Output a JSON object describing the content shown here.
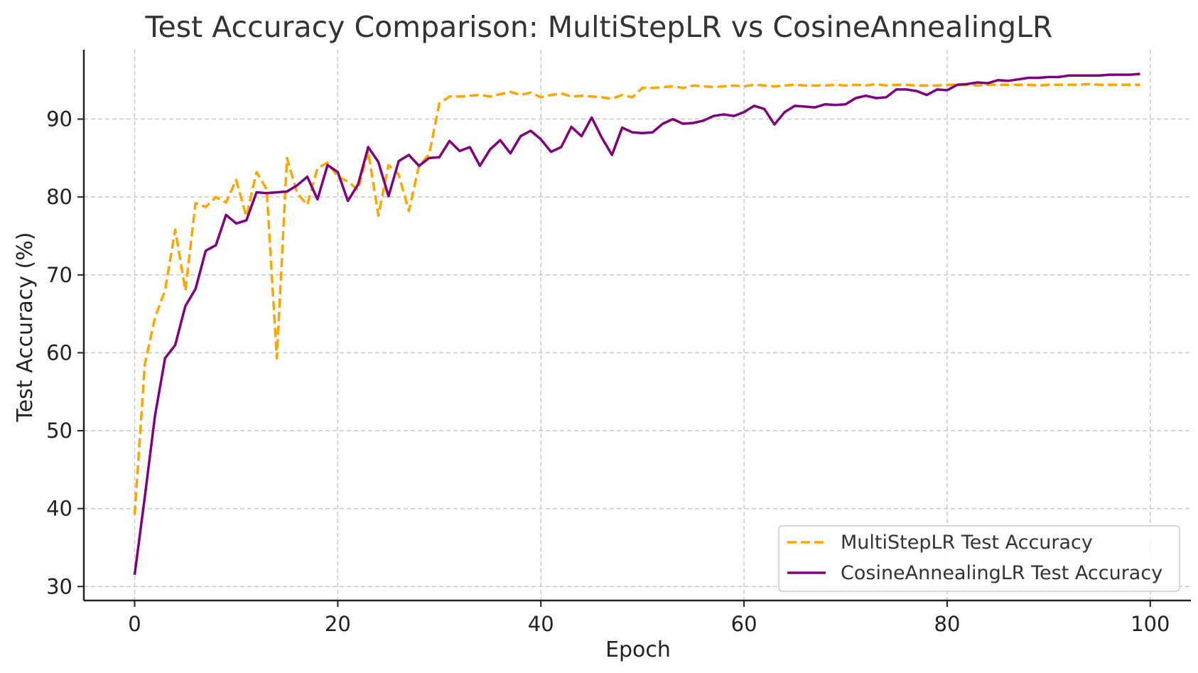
{
  "chart_data": {
    "type": "line",
    "title": "Test Accuracy Comparison: MultiStepLR vs CosineAnnealingLR",
    "xlabel": "Epoch",
    "ylabel": "Test Accuracy (%)",
    "xlim": [
      -5,
      104
    ],
    "ylim": [
      28.2,
      98.9
    ],
    "xticks": [
      0,
      20,
      40,
      60,
      80,
      100
    ],
    "yticks": [
      30,
      40,
      50,
      60,
      70,
      80,
      90
    ],
    "grid": true,
    "legend_position": "bottom-right",
    "series": [
      {
        "name": "MultiStepLR Test Accuracy",
        "color": "#ffa500",
        "style": "dashed",
        "x": [
          0,
          1,
          2,
          3,
          4,
          5,
          6,
          7,
          8,
          9,
          10,
          11,
          12,
          13,
          14,
          15,
          16,
          17,
          18,
          19,
          20,
          21,
          22,
          23,
          24,
          25,
          26,
          27,
          28,
          29,
          30,
          31,
          32,
          33,
          34,
          35,
          36,
          37,
          38,
          39,
          40,
          41,
          42,
          43,
          44,
          45,
          46,
          47,
          48,
          49,
          50,
          51,
          52,
          53,
          54,
          55,
          56,
          57,
          58,
          59,
          60,
          61,
          62,
          63,
          64,
          65,
          66,
          67,
          68,
          69,
          70,
          71,
          72,
          73,
          74,
          75,
          76,
          77,
          78,
          79,
          80,
          81,
          82,
          83,
          84,
          85,
          86,
          87,
          88,
          89,
          90,
          91,
          92,
          93,
          94,
          95,
          96,
          97,
          98,
          99
        ],
        "values": [
          39.2,
          58.5,
          64.5,
          68.0,
          75.8,
          68.0,
          79.2,
          78.7,
          80.0,
          79.3,
          82.2,
          77.5,
          83.2,
          81.0,
          59.3,
          85.0,
          80.5,
          79.0,
          83.7,
          84.4,
          82.6,
          82.0,
          80.9,
          85.9,
          77.6,
          84.1,
          82.9,
          78.2,
          84.0,
          85.5,
          92.0,
          92.9,
          92.9,
          93.0,
          93.1,
          92.9,
          93.2,
          93.5,
          93.1,
          93.4,
          92.8,
          93.1,
          93.3,
          92.9,
          93.0,
          92.9,
          92.8,
          92.6,
          93.1,
          92.8,
          94.0,
          94.0,
          94.1,
          94.2,
          94.0,
          94.3,
          94.2,
          94.1,
          94.2,
          94.3,
          94.2,
          94.4,
          94.3,
          94.2,
          94.3,
          94.4,
          94.3,
          94.3,
          94.3,
          94.4,
          94.3,
          94.4,
          94.3,
          94.5,
          94.3,
          94.4,
          94.4,
          94.3,
          94.3,
          94.3,
          94.4,
          94.4,
          94.4,
          94.3,
          94.4,
          94.4,
          94.4,
          94.4,
          94.4,
          94.3,
          94.4,
          94.4,
          94.4,
          94.4,
          94.5,
          94.4,
          94.4,
          94.4,
          94.4,
          94.4
        ]
      },
      {
        "name": "CosineAnnealingLR Test Accuracy",
        "color": "#800080",
        "style": "solid",
        "x": [
          0,
          1,
          2,
          3,
          4,
          5,
          6,
          7,
          8,
          9,
          10,
          11,
          12,
          13,
          14,
          15,
          16,
          17,
          18,
          19,
          20,
          21,
          22,
          23,
          24,
          25,
          26,
          27,
          28,
          29,
          30,
          31,
          32,
          33,
          34,
          35,
          36,
          37,
          38,
          39,
          40,
          41,
          42,
          43,
          44,
          45,
          46,
          47,
          48,
          49,
          50,
          51,
          52,
          53,
          54,
          55,
          56,
          57,
          58,
          59,
          60,
          61,
          62,
          63,
          64,
          65,
          66,
          67,
          68,
          69,
          70,
          71,
          72,
          73,
          74,
          75,
          76,
          77,
          78,
          79,
          80,
          81,
          82,
          83,
          84,
          85,
          86,
          87,
          88,
          89,
          90,
          91,
          92,
          93,
          94,
          95,
          96,
          97,
          98,
          99
        ],
        "values": [
          31.5,
          41.5,
          51.9,
          59.3,
          61.0,
          66.0,
          68.2,
          73.1,
          73.8,
          77.7,
          76.6,
          77.0,
          80.6,
          80.5,
          80.6,
          80.7,
          81.5,
          82.6,
          79.7,
          84.1,
          83.2,
          79.5,
          81.6,
          86.4,
          84.5,
          80.1,
          84.6,
          85.4,
          84.0,
          85.0,
          85.1,
          87.2,
          85.9,
          86.4,
          84.0,
          86.1,
          87.3,
          85.6,
          87.8,
          88.5,
          87.4,
          85.8,
          86.4,
          89.0,
          87.8,
          90.2,
          87.6,
          85.4,
          88.9,
          88.3,
          88.2,
          88.3,
          89.4,
          90.0,
          89.4,
          89.5,
          89.8,
          90.4,
          90.6,
          90.4,
          90.9,
          91.7,
          91.3,
          89.3,
          90.9,
          91.7,
          91.6,
          91.5,
          91.9,
          91.8,
          91.9,
          92.7,
          93.0,
          92.7,
          92.8,
          93.8,
          93.8,
          93.6,
          93.1,
          93.8,
          93.7,
          94.4,
          94.5,
          94.7,
          94.6,
          95.0,
          94.9,
          95.1,
          95.3,
          95.3,
          95.4,
          95.4,
          95.6,
          95.6,
          95.6,
          95.6,
          95.7,
          95.7,
          95.7,
          95.8
        ]
      }
    ]
  }
}
